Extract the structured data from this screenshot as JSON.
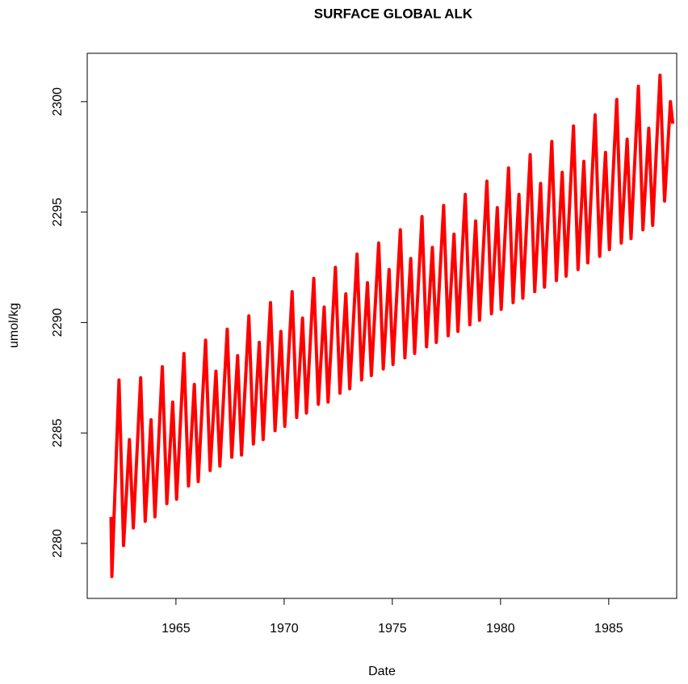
{
  "chart_data": {
    "type": "line",
    "title": "SURFACE GLOBAL ALK",
    "x_label": "Date",
    "y_label": "umol/kg",
    "color": "#ff0000",
    "x": [
      1962,
      1962.04,
      1962.37,
      1962.58,
      1962.85,
      1963.03,
      1963.37,
      1963.58,
      1963.85,
      1964.03,
      1964.37,
      1964.58,
      1964.85,
      1965.03,
      1965.37,
      1965.58,
      1965.85,
      1966.03,
      1966.37,
      1966.58,
      1966.85,
      1967.03,
      1967.37,
      1967.58,
      1967.85,
      1968.03,
      1968.37,
      1968.58,
      1968.85,
      1969.03,
      1969.37,
      1969.58,
      1969.85,
      1970.03,
      1970.37,
      1970.58,
      1970.85,
      1971.03,
      1971.37,
      1971.58,
      1971.85,
      1972.03,
      1972.37,
      1972.58,
      1972.85,
      1973.03,
      1973.37,
      1973.58,
      1973.85,
      1974.03,
      1974.37,
      1974.58,
      1974.85,
      1975.03,
      1975.37,
      1975.58,
      1975.85,
      1976.03,
      1976.37,
      1976.58,
      1976.85,
      1977.03,
      1977.37,
      1977.58,
      1977.85,
      1978.03,
      1978.37,
      1978.58,
      1978.85,
      1979.03,
      1979.37,
      1979.58,
      1979.85,
      1980.03,
      1980.37,
      1980.58,
      1980.85,
      1981.03,
      1981.37,
      1981.58,
      1981.85,
      1982.03,
      1982.37,
      1982.58,
      1982.85,
      1983.03,
      1983.37,
      1983.58,
      1983.85,
      1984.03,
      1984.37,
      1984.58,
      1984.85,
      1985.03,
      1985.37,
      1985.58,
      1985.85,
      1986.03,
      1986.37,
      1986.58,
      1986.85,
      1987.03,
      1987.37,
      1987.58,
      1987.85,
      1987.96
    ],
    "values": [
      2281.2,
      2278.5,
      2287.4,
      2279.9,
      2284.7,
      2280.7,
      2287.5,
      2281.0,
      2285.6,
      2281.2,
      2288.0,
      2281.8,
      2286.4,
      2282.0,
      2288.6,
      2282.6,
      2287.2,
      2282.8,
      2289.2,
      2283.3,
      2287.8,
      2283.5,
      2289.7,
      2283.9,
      2288.5,
      2284.0,
      2290.3,
      2284.5,
      2289.1,
      2284.7,
      2290.9,
      2285.1,
      2289.6,
      2285.3,
      2291.4,
      2285.7,
      2290.2,
      2285.9,
      2292.0,
      2286.3,
      2290.7,
      2286.4,
      2292.5,
      2286.8,
      2291.3,
      2287.0,
      2293.1,
      2287.4,
      2291.8,
      2287.6,
      2293.6,
      2287.9,
      2292.4,
      2288.1,
      2294.2,
      2288.4,
      2292.9,
      2288.6,
      2294.8,
      2288.9,
      2293.4,
      2289.1,
      2295.3,
      2289.4,
      2294.0,
      2289.6,
      2295.8,
      2289.9,
      2294.6,
      2290.1,
      2296.4,
      2290.4,
      2295.2,
      2290.6,
      2297.0,
      2290.9,
      2295.8,
      2291.1,
      2297.6,
      2291.4,
      2296.3,
      2291.6,
      2298.2,
      2291.9,
      2296.8,
      2292.1,
      2298.9,
      2292.4,
      2297.3,
      2292.7,
      2299.4,
      2293.0,
      2297.7,
      2293.3,
      2300.1,
      2293.6,
      2298.3,
      2293.8,
      2300.7,
      2294.2,
      2298.8,
      2294.4,
      2301.2,
      2295.5,
      2300.0,
      2299.0
    ],
    "xlim": [
      1960.9,
      1988.14
    ],
    "ylim": [
      2277.51,
      2302.19
    ],
    "xticks": [
      1965,
      1970,
      1975,
      1980,
      1985
    ],
    "yticks": [
      2280,
      2285,
      2290,
      2295,
      2300
    ]
  }
}
